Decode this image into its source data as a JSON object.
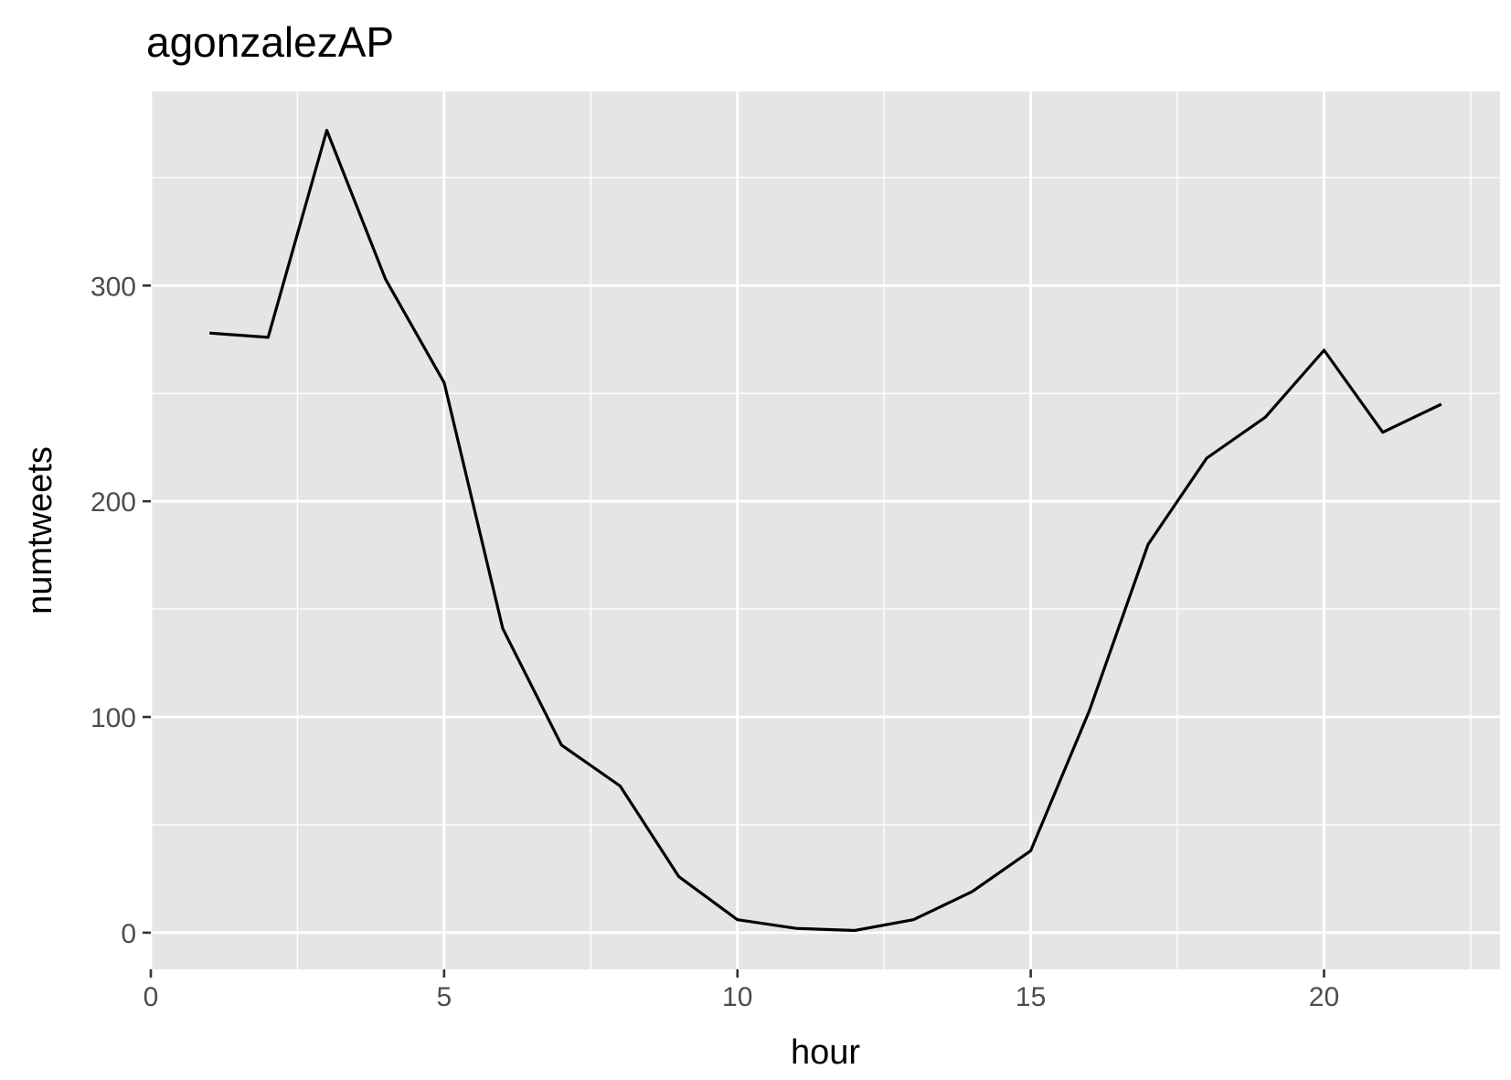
{
  "chart_data": {
    "type": "line",
    "title": "agonzalezAP",
    "xlabel": "hour",
    "ylabel": "numtweets",
    "xlim": [
      0,
      23
    ],
    "ylim": [
      -17,
      390
    ],
    "x_ticks": [
      0,
      5,
      10,
      15,
      20
    ],
    "x_tick_labels": [
      "0",
      "5",
      "10",
      "15",
      "20"
    ],
    "y_ticks": [
      0,
      100,
      200,
      300
    ],
    "y_tick_labels": [
      "0",
      "100",
      "200",
      "300"
    ],
    "grid": true,
    "legend": "none",
    "colors": {
      "panel": "#e5e5e5",
      "grid": "#ffffff",
      "line": "#000000",
      "ticks": "#333333"
    },
    "series": [
      {
        "x": [
          1,
          2,
          3,
          4,
          5,
          6,
          7,
          8,
          9,
          10,
          11,
          12,
          13,
          14,
          15,
          16,
          17,
          18,
          19,
          20,
          21,
          22
        ],
        "y": [
          278,
          276,
          372,
          303,
          255,
          141,
          87,
          68,
          26,
          6,
          2,
          1,
          6,
          19,
          38,
          103,
          180,
          220,
          239,
          270,
          232,
          245
        ]
      }
    ]
  }
}
